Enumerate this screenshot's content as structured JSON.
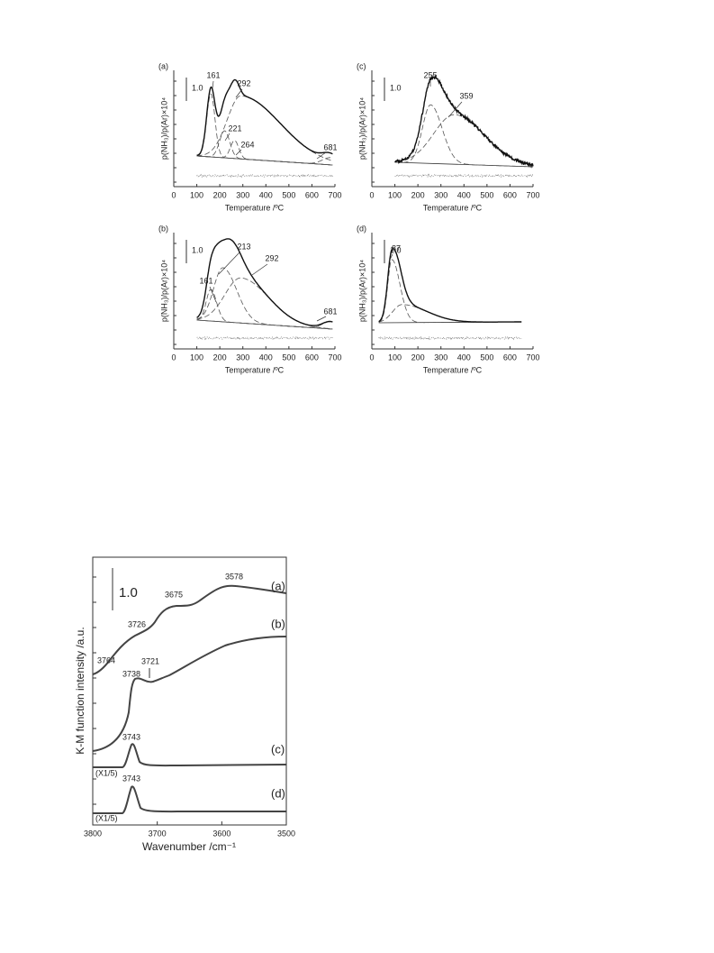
{
  "figure1": {
    "x_label": "Temperature /ºC",
    "y_label": "p(NH₃)/p(Ar)×10⁴",
    "xticks": [
      0,
      100,
      200,
      300,
      400,
      500,
      600,
      700
    ],
    "panels": [
      {
        "label": "(a)",
        "scale": "1.0",
        "peaks": [
          161,
          292,
          221,
          264,
          681
        ]
      },
      {
        "label": "(b)",
        "scale": "1.0",
        "peaks": [
          161,
          213,
          292,
          681
        ]
      },
      {
        "label": "(c)",
        "scale": "1.0",
        "peaks": [
          255,
          359
        ]
      },
      {
        "label": "(d)",
        "scale": "1.0",
        "peaks": [
          87
        ]
      }
    ]
  },
  "figure2": {
    "x_label": "Wavenumber /cm⁻¹",
    "y_label": "K-M function intensity /a.u.",
    "xticks": [
      3800,
      3700,
      3600,
      3500
    ],
    "scale": "1.0",
    "curves": [
      {
        "label": "(a)",
        "peaks": [
          "3764",
          "3726",
          "3675",
          "3578"
        ]
      },
      {
        "label": "(b)",
        "peaks": [
          "3738",
          "3721"
        ]
      },
      {
        "label": "(c)",
        "factor": "(X1/5)",
        "peaks": [
          "3743"
        ]
      },
      {
        "label": "(d)",
        "factor": "(X1/5)",
        "peaks": [
          "3743"
        ]
      }
    ]
  }
}
